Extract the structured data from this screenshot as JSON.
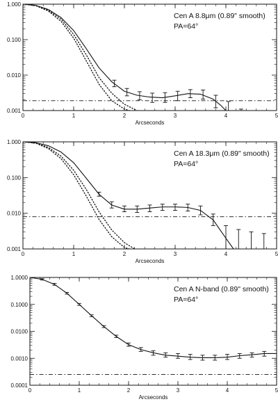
{
  "chart_data": [
    {
      "type": "line",
      "yscale": "log",
      "xlim": [
        0,
        5
      ],
      "ylim": [
        0.001,
        1
      ],
      "x_ticks": [
        "0",
        "1",
        "2",
        "3",
        "4",
        "5"
      ],
      "y_ticks": [
        "0.001",
        "0.010",
        "0.100",
        "1.000"
      ],
      "xlabel": "Arcseconds",
      "annotation": [
        "Cen A 8.8μm (0.89\" smooth)",
        "PA=64°"
      ],
      "baseline_y": 0.0019,
      "series": [
        {
          "style": "solid",
          "x": [
            0,
            0.25,
            0.5,
            0.75,
            1.0,
            1.25,
            1.5,
            1.75,
            2.0,
            2.25,
            2.5,
            2.75,
            3.0,
            3.25,
            3.5,
            3.75,
            3.9,
            4.0
          ],
          "y": [
            1.0,
            0.93,
            0.71,
            0.42,
            0.18,
            0.055,
            0.016,
            0.0065,
            0.0035,
            0.0027,
            0.0024,
            0.0023,
            0.0026,
            0.003,
            0.0029,
            0.0021,
            0.0014,
            0.001
          ]
        },
        {
          "style": "dotted",
          "x": [
            0,
            0.25,
            0.5,
            0.75,
            1.0,
            1.25,
            1.5,
            1.75,
            2.0,
            2.25
          ],
          "y": [
            1.0,
            0.92,
            0.68,
            0.38,
            0.14,
            0.037,
            0.0085,
            0.0031,
            0.0015,
            0.001
          ]
        },
        {
          "style": "dotted",
          "x": [
            0,
            0.25,
            0.5,
            0.75,
            1.0,
            1.25,
            1.5,
            1.75,
            2.0,
            2.1
          ],
          "y": [
            1.0,
            0.91,
            0.64,
            0.33,
            0.11,
            0.025,
            0.0055,
            0.0019,
            0.0011,
            0.001
          ]
        }
      ],
      "errorbars": [
        {
          "x": 1.8,
          "y": 0.0058,
          "lo": 0.0047,
          "hi": 0.0072
        },
        {
          "x": 2.05,
          "y": 0.0033,
          "lo": 0.0026,
          "hi": 0.0042
        },
        {
          "x": 2.3,
          "y": 0.0026,
          "lo": 0.002,
          "hi": 0.0034
        },
        {
          "x": 2.55,
          "y": 0.0023,
          "lo": 0.0017,
          "hi": 0.0031
        },
        {
          "x": 2.8,
          "y": 0.0023,
          "lo": 0.0017,
          "hi": 0.0032
        },
        {
          "x": 3.05,
          "y": 0.0026,
          "lo": 0.0019,
          "hi": 0.0035
        },
        {
          "x": 3.3,
          "y": 0.003,
          "lo": 0.0023,
          "hi": 0.0039
        },
        {
          "x": 3.55,
          "y": 0.0028,
          "lo": 0.0021,
          "hi": 0.0038
        },
        {
          "x": 3.8,
          "y": 0.0018,
          "lo": 0.0012,
          "hi": 0.0027
        },
        {
          "x": 4.05,
          "y": 0.0011,
          "lo": 0.0007,
          "hi": 0.0018
        },
        {
          "x": 4.3,
          "y": 0.0007,
          "lo": 0.0004,
          "hi": 0.0011
        }
      ]
    },
    {
      "type": "line",
      "yscale": "log",
      "xlim": [
        0,
        5
      ],
      "ylim": [
        0.001,
        1
      ],
      "x_ticks": [
        "0",
        "1",
        "2",
        "3",
        "4",
        "5"
      ],
      "y_ticks": [
        "0.001",
        "0.010",
        "0.100",
        "1.000"
      ],
      "xlabel": "Arcseconds",
      "annotation": [
        "Cen A 18.3μm (0.89\" smooth)",
        "PA=64°"
      ],
      "baseline_y": 0.008,
      "series": [
        {
          "style": "solid",
          "x": [
            0,
            0.25,
            0.5,
            0.75,
            1.0,
            1.25,
            1.5,
            1.75,
            2.0,
            2.25,
            2.5,
            2.75,
            3.0,
            3.25,
            3.5,
            3.75,
            4.0,
            4.15
          ],
          "y": [
            1.0,
            0.95,
            0.78,
            0.52,
            0.26,
            0.095,
            0.034,
            0.017,
            0.013,
            0.013,
            0.014,
            0.015,
            0.015,
            0.0145,
            0.012,
            0.0065,
            0.002,
            0.001
          ]
        },
        {
          "style": "dotted",
          "x": [
            0,
            0.25,
            0.5,
            0.75,
            1.0,
            1.25,
            1.5,
            1.75,
            2.0,
            2.2
          ],
          "y": [
            1.0,
            0.93,
            0.7,
            0.4,
            0.16,
            0.046,
            0.011,
            0.0034,
            0.0015,
            0.001
          ]
        },
        {
          "style": "dotted",
          "x": [
            0,
            0.25,
            0.5,
            0.75,
            1.0,
            1.25,
            1.5,
            1.75,
            2.0,
            2.1
          ],
          "y": [
            1.0,
            0.92,
            0.65,
            0.34,
            0.12,
            0.03,
            0.0067,
            0.0022,
            0.0011,
            0.001
          ]
        }
      ],
      "errorbars": [
        {
          "x": 1.5,
          "y": 0.034,
          "lo": 0.03,
          "hi": 0.039
        },
        {
          "x": 1.75,
          "y": 0.017,
          "lo": 0.014,
          "hi": 0.021
        },
        {
          "x": 2.0,
          "y": 0.013,
          "lo": 0.011,
          "hi": 0.016
        },
        {
          "x": 2.25,
          "y": 0.013,
          "lo": 0.0105,
          "hi": 0.016
        },
        {
          "x": 2.5,
          "y": 0.014,
          "lo": 0.011,
          "hi": 0.017
        },
        {
          "x": 2.75,
          "y": 0.015,
          "lo": 0.012,
          "hi": 0.018
        },
        {
          "x": 3.0,
          "y": 0.015,
          "lo": 0.012,
          "hi": 0.018
        },
        {
          "x": 3.25,
          "y": 0.0145,
          "lo": 0.0115,
          "hi": 0.018
        },
        {
          "x": 3.5,
          "y": 0.012,
          "lo": 0.009,
          "hi": 0.016
        },
        {
          "x": 3.75,
          "y": 0.0065,
          "lo": 0.0045,
          "hi": 0.0095
        },
        {
          "x": 4.0,
          "y": 0.002,
          "lo": 0.001,
          "hi": 0.0045
        },
        {
          "x": 4.25,
          "y": 0.0013,
          "lo": 0.001,
          "hi": 0.0035
        },
        {
          "x": 4.5,
          "y": 0.0012,
          "lo": 0.001,
          "hi": 0.003
        },
        {
          "x": 4.75,
          "y": 0.0012,
          "lo": 0.001,
          "hi": 0.0027
        }
      ]
    },
    {
      "type": "line",
      "yscale": "log",
      "xlim": [
        0,
        5
      ],
      "ylim": [
        0.0001,
        1
      ],
      "x_ticks": [
        "0",
        "1",
        "2",
        "3",
        "4",
        "5"
      ],
      "y_ticks": [
        "0.0001",
        "0.0010",
        "0.0100",
        "0.1000",
        "1.0000"
      ],
      "xlabel": "Arcseconds",
      "annotation": [
        "Cen A N-band (0.89\" smooth)",
        "PA=64°"
      ],
      "baseline_y": 0.00025,
      "series": [
        {
          "style": "solid",
          "x": [
            0,
            0.25,
            0.5,
            0.75,
            1.0,
            1.25,
            1.5,
            1.75,
            2.0,
            2.25,
            2.5,
            2.75,
            3.0,
            3.25,
            3.5,
            3.75,
            4.0,
            4.25,
            4.5,
            4.75,
            5.0
          ],
          "y": [
            1.0,
            0.85,
            0.55,
            0.26,
            0.1,
            0.038,
            0.015,
            0.0065,
            0.0032,
            0.0021,
            0.0016,
            0.0013,
            0.0012,
            0.0011,
            0.00105,
            0.00105,
            0.0011,
            0.00125,
            0.00135,
            0.0015,
            0.0015
          ]
        }
      ],
      "errorbars": [
        {
          "x": 0.25,
          "y": 0.85,
          "lo": 0.8,
          "hi": 0.9
        },
        {
          "x": 0.5,
          "y": 0.55,
          "lo": 0.51,
          "hi": 0.6
        },
        {
          "x": 0.75,
          "y": 0.26,
          "lo": 0.24,
          "hi": 0.28
        },
        {
          "x": 1.0,
          "y": 0.1,
          "lo": 0.092,
          "hi": 0.109
        },
        {
          "x": 1.25,
          "y": 0.038,
          "lo": 0.035,
          "hi": 0.041
        },
        {
          "x": 1.5,
          "y": 0.015,
          "lo": 0.0138,
          "hi": 0.0163
        },
        {
          "x": 1.75,
          "y": 0.0065,
          "lo": 0.0059,
          "hi": 0.0072
        },
        {
          "x": 2.0,
          "y": 0.0032,
          "lo": 0.0028,
          "hi": 0.0037
        },
        {
          "x": 2.25,
          "y": 0.0021,
          "lo": 0.0018,
          "hi": 0.0025
        },
        {
          "x": 2.5,
          "y": 0.0016,
          "lo": 0.0013,
          "hi": 0.0019
        },
        {
          "x": 2.75,
          "y": 0.0013,
          "lo": 0.0011,
          "hi": 0.0016
        },
        {
          "x": 3.0,
          "y": 0.0012,
          "lo": 0.001,
          "hi": 0.0015
        },
        {
          "x": 3.25,
          "y": 0.0011,
          "lo": 0.0009,
          "hi": 0.0014
        },
        {
          "x": 3.5,
          "y": 0.00105,
          "lo": 0.00085,
          "hi": 0.0013
        },
        {
          "x": 3.75,
          "y": 0.00105,
          "lo": 0.00085,
          "hi": 0.0013
        },
        {
          "x": 4.0,
          "y": 0.0011,
          "lo": 0.0009,
          "hi": 0.0014
        },
        {
          "x": 4.25,
          "y": 0.00125,
          "lo": 0.001,
          "hi": 0.0015
        },
        {
          "x": 4.5,
          "y": 0.00135,
          "lo": 0.0011,
          "hi": 0.0016
        },
        {
          "x": 4.75,
          "y": 0.0015,
          "lo": 0.0012,
          "hi": 0.0018
        }
      ]
    }
  ]
}
